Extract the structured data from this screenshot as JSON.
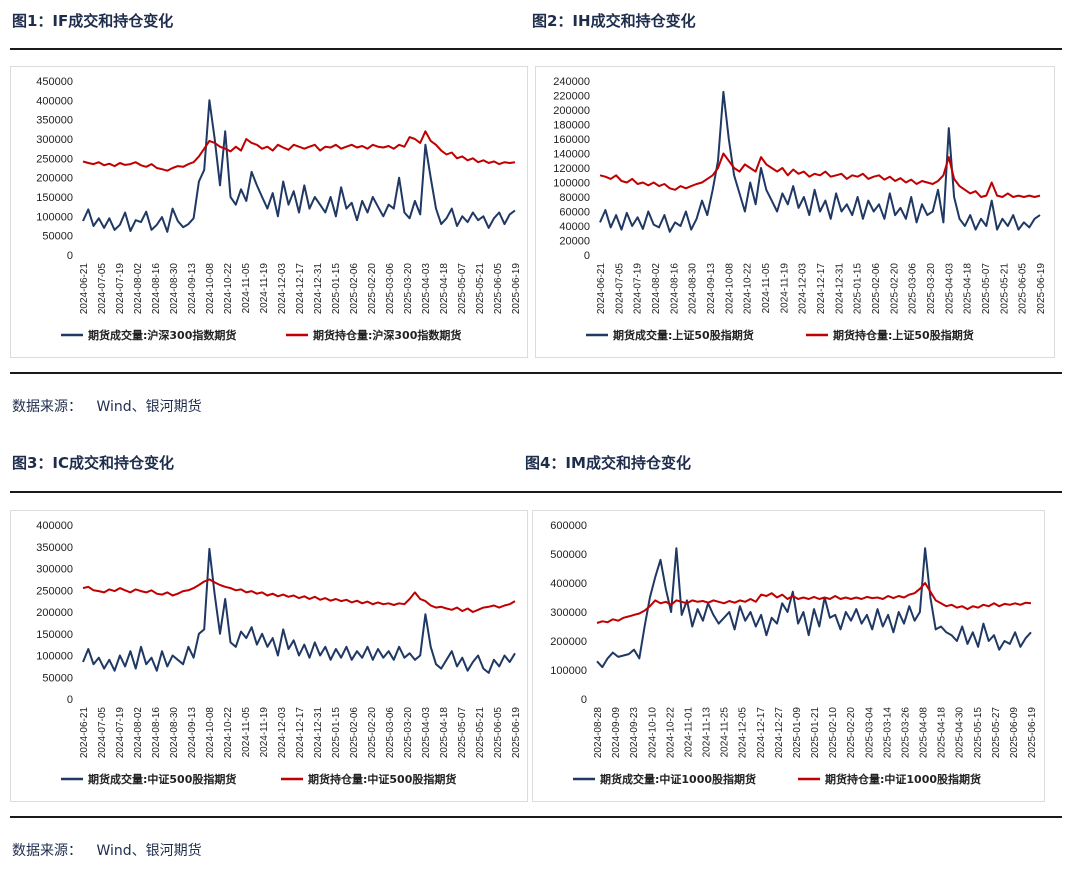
{
  "colors": {
    "volume": "#1f3864",
    "open_interest": "#c00000",
    "rule": "#1a1a1a"
  },
  "source_label": "数据来源：",
  "source_value": "Wind、银河期货",
  "chart_data": [
    {
      "type": "line",
      "title": "图1：IF成交和持仓变化",
      "yticks": [
        "450000",
        "400000",
        "350000",
        "300000",
        "250000",
        "200000",
        "150000",
        "100000",
        "50000",
        "0"
      ],
      "ylim": [
        0,
        450000
      ],
      "x_start": "2024-06-21",
      "x_end": "2025-06-19",
      "x_ticks": [
        "2024-06-21",
        "2024-07-05",
        "2024-07-19",
        "2024-08-02",
        "2024-08-16",
        "2024-08-30",
        "2024-09-13",
        "2024-10-08",
        "2024-10-22",
        "2024-11-05",
        "2024-11-19",
        "2024-12-03",
        "2024-12-17",
        "2024-12-31",
        "2025-01-15",
        "2025-02-06",
        "2025-02-20",
        "2025-03-06",
        "2025-03-20",
        "2025-04-03",
        "2025-04-18",
        "2025-05-07",
        "2025-05-21",
        "2025-06-05",
        "2025-06-19"
      ],
      "legend": [
        "期货成交量:沪深300指数期货",
        "期货持仓量:沪深300指数期货"
      ],
      "series": [
        {
          "name": "期货成交量:沪深300指数期货",
          "color": "#1f3864",
          "values": [
            88000,
            118000,
            75000,
            95000,
            70000,
            95000,
            65000,
            78000,
            110000,
            62000,
            90000,
            85000,
            112000,
            65000,
            78000,
            98000,
            60000,
            120000,
            88000,
            72000,
            80000,
            95000,
            190000,
            220000,
            400000,
            300000,
            180000,
            320000,
            150000,
            130000,
            170000,
            140000,
            215000,
            180000,
            150000,
            120000,
            160000,
            100000,
            190000,
            130000,
            165000,
            110000,
            180000,
            120000,
            150000,
            130000,
            110000,
            150000,
            100000,
            175000,
            120000,
            135000,
            90000,
            140000,
            110000,
            150000,
            125000,
            100000,
            130000,
            120000,
            200000,
            110000,
            95000,
            140000,
            105000,
            285000,
            200000,
            120000,
            80000,
            95000,
            120000,
            75000,
            100000,
            85000,
            110000,
            90000,
            100000,
            70000,
            95000,
            110000,
            80000,
            105000,
            115000
          ]
        },
        {
          "name": "期货持仓量:沪深300指数期货",
          "color": "#c00000",
          "values": [
            242000,
            238000,
            235000,
            240000,
            232000,
            236000,
            230000,
            238000,
            233000,
            235000,
            240000,
            232000,
            228000,
            235000,
            225000,
            222000,
            218000,
            225000,
            230000,
            228000,
            235000,
            240000,
            255000,
            275000,
            295000,
            290000,
            280000,
            275000,
            268000,
            280000,
            270000,
            300000,
            290000,
            285000,
            275000,
            280000,
            270000,
            285000,
            278000,
            272000,
            285000,
            280000,
            275000,
            280000,
            285000,
            270000,
            280000,
            278000,
            285000,
            275000,
            280000,
            285000,
            278000,
            282000,
            275000,
            285000,
            280000,
            278000,
            282000,
            275000,
            285000,
            280000,
            305000,
            300000,
            290000,
            320000,
            295000,
            285000,
            270000,
            260000,
            265000,
            250000,
            255000,
            245000,
            250000,
            240000,
            245000,
            238000,
            242000,
            235000,
            240000,
            238000,
            240000
          ]
        }
      ]
    },
    {
      "type": "line",
      "title": "图2：IH成交和持仓变化",
      "yticks": [
        "240000",
        "220000",
        "200000",
        "180000",
        "160000",
        "140000",
        "120000",
        "100000",
        "80000",
        "60000",
        "40000",
        "20000",
        "0"
      ],
      "ylim": [
        0,
        240000
      ],
      "x_start": "2024-06-21",
      "x_end": "2025-06-19",
      "x_ticks": [
        "2024-06-21",
        "2024-07-05",
        "2024-07-19",
        "2024-08-02",
        "2024-08-16",
        "2024-08-30",
        "2024-09-13",
        "2024-10-08",
        "2024-10-22",
        "2024-11-05",
        "2024-11-19",
        "2024-12-03",
        "2024-12-17",
        "2024-12-31",
        "2025-01-15",
        "2025-02-06",
        "2025-02-20",
        "2025-03-06",
        "2025-03-20",
        "2025-04-03",
        "2025-04-18",
        "2025-05-07",
        "2025-05-21",
        "2025-06-05",
        "2025-06-19"
      ],
      "legend": [
        "期货成交量:上证50股指期货",
        "期货持仓量:上证50股指期货"
      ],
      "series": [
        {
          "name": "期货成交量:上证50股指期货",
          "color": "#1f3864",
          "values": [
            45000,
            62000,
            38000,
            55000,
            35000,
            58000,
            40000,
            52000,
            36000,
            60000,
            42000,
            38000,
            55000,
            32000,
            45000,
            40000,
            60000,
            35000,
            50000,
            75000,
            55000,
            90000,
            130000,
            225000,
            160000,
            110000,
            85000,
            60000,
            100000,
            70000,
            120000,
            90000,
            75000,
            60000,
            85000,
            70000,
            95000,
            65000,
            80000,
            55000,
            90000,
            60000,
            75000,
            50000,
            85000,
            60000,
            70000,
            55000,
            80000,
            50000,
            75000,
            60000,
            70000,
            50000,
            85000,
            55000,
            65000,
            50000,
            80000,
            45000,
            70000,
            55000,
            60000,
            90000,
            45000,
            175000,
            80000,
            50000,
            40000,
            55000,
            35000,
            50000,
            40000,
            75000,
            35000,
            50000,
            40000,
            55000,
            35000,
            45000,
            38000,
            50000,
            55000
          ]
        },
        {
          "name": "期货持仓量:上证50股指期货",
          "color": "#c00000",
          "values": [
            110000,
            108000,
            105000,
            110000,
            102000,
            100000,
            105000,
            98000,
            100000,
            96000,
            100000,
            95000,
            98000,
            92000,
            90000,
            95000,
            92000,
            95000,
            98000,
            100000,
            105000,
            110000,
            120000,
            140000,
            130000,
            120000,
            115000,
            125000,
            120000,
            115000,
            135000,
            125000,
            120000,
            115000,
            120000,
            110000,
            118000,
            112000,
            115000,
            108000,
            112000,
            110000,
            115000,
            108000,
            110000,
            112000,
            105000,
            110000,
            108000,
            112000,
            105000,
            108000,
            110000,
            104000,
            108000,
            102000,
            106000,
            100000,
            104000,
            98000,
            102000,
            100000,
            98000,
            102000,
            110000,
            135000,
            105000,
            95000,
            90000,
            85000,
            88000,
            80000,
            82000,
            100000,
            82000,
            80000,
            85000,
            80000,
            82000,
            80000,
            82000,
            80000,
            82000
          ]
        }
      ]
    },
    {
      "type": "line",
      "title": "图3：IC成交和持仓变化",
      "yticks": [
        "400000",
        "350000",
        "300000",
        "250000",
        "200000",
        "150000",
        "100000",
        "50000",
        "0"
      ],
      "ylim": [
        0,
        400000
      ],
      "x_start": "2024-06-21",
      "x_end": "2025-06-19",
      "x_ticks": [
        "2024-06-21",
        "2024-07-05",
        "2024-07-19",
        "2024-08-02",
        "2024-08-16",
        "2024-08-30",
        "2024-09-13",
        "2024-10-08",
        "2024-10-22",
        "2024-11-05",
        "2024-11-19",
        "2024-12-03",
        "2024-12-17",
        "2024-12-31",
        "2025-01-15",
        "2025-02-06",
        "2025-02-20",
        "2025-03-06",
        "2025-03-20",
        "2025-04-03",
        "2025-04-18",
        "2025-05-07",
        "2025-05-21",
        "2025-06-05",
        "2025-06-19"
      ],
      "legend": [
        "期货成交量:中证500股指期货",
        "期货持仓量:中证500股指期货"
      ],
      "series": [
        {
          "name": "期货成交量:中证500股指期货",
          "color": "#1f3864",
          "values": [
            85000,
            115000,
            80000,
            95000,
            70000,
            90000,
            65000,
            100000,
            75000,
            110000,
            70000,
            120000,
            80000,
            95000,
            65000,
            110000,
            75000,
            100000,
            90000,
            80000,
            120000,
            95000,
            150000,
            160000,
            345000,
            240000,
            150000,
            230000,
            130000,
            120000,
            155000,
            140000,
            165000,
            125000,
            150000,
            120000,
            140000,
            100000,
            160000,
            115000,
            135000,
            100000,
            125000,
            95000,
            130000,
            100000,
            120000,
            90000,
            115000,
            95000,
            120000,
            90000,
            110000,
            95000,
            120000,
            90000,
            115000,
            95000,
            110000,
            90000,
            120000,
            95000,
            105000,
            90000,
            100000,
            195000,
            120000,
            80000,
            70000,
            90000,
            110000,
            75000,
            95000,
            65000,
            85000,
            100000,
            70000,
            60000,
            90000,
            75000,
            100000,
            85000,
            105000
          ]
        },
        {
          "name": "期货持仓量:中证500股指期货",
          "color": "#c00000",
          "values": [
            255000,
            258000,
            250000,
            248000,
            245000,
            252000,
            248000,
            255000,
            250000,
            245000,
            252000,
            248000,
            245000,
            250000,
            242000,
            240000,
            245000,
            238000,
            242000,
            248000,
            250000,
            255000,
            262000,
            270000,
            275000,
            268000,
            262000,
            258000,
            255000,
            250000,
            252000,
            245000,
            248000,
            242000,
            245000,
            238000,
            242000,
            236000,
            240000,
            235000,
            238000,
            232000,
            236000,
            230000,
            235000,
            228000,
            232000,
            226000,
            230000,
            225000,
            228000,
            222000,
            226000,
            220000,
            224000,
            218000,
            222000,
            218000,
            220000,
            216000,
            220000,
            218000,
            230000,
            245000,
            230000,
            225000,
            215000,
            210000,
            212000,
            208000,
            205000,
            210000,
            202000,
            208000,
            200000,
            205000,
            210000,
            212000,
            215000,
            210000,
            215000,
            218000,
            225000
          ]
        }
      ]
    },
    {
      "type": "line",
      "title": "图4：IM成交和持仓变化",
      "yticks": [
        "600000",
        "500000",
        "400000",
        "300000",
        "200000",
        "100000",
        "0"
      ],
      "ylim": [
        0,
        600000
      ],
      "x_start": "2024-06-28",
      "x_end": "2025-06-19",
      "x_ticks": [
        "2024-08-28",
        "2024-09-09",
        "2024-09-23",
        "2024-10-10",
        "2024-10-22",
        "2024-11-01",
        "2024-11-13",
        "2024-11-25",
        "2024-12-05",
        "2024-12-17",
        "2024-12-27",
        "2025-01-09",
        "2025-01-21",
        "2025-02-10",
        "2025-02-20",
        "2025-03-04",
        "2025-03-14",
        "2025-03-26",
        "2025-04-08",
        "2025-04-18",
        "2025-04-30",
        "2025-05-15",
        "2025-05-27",
        "2025-06-09",
        "2025-06-19"
      ],
      "legend": [
        "期货成交量:中证1000股指期货",
        "期货持仓量:中证1000股指期货"
      ],
      "series": [
        {
          "name": "期货成交量:中证1000股指期货",
          "color": "#1f3864",
          "values": [
            130000,
            110000,
            140000,
            160000,
            145000,
            150000,
            155000,
            170000,
            140000,
            250000,
            350000,
            420000,
            480000,
            380000,
            300000,
            520000,
            290000,
            340000,
            250000,
            310000,
            270000,
            330000,
            290000,
            260000,
            280000,
            300000,
            240000,
            320000,
            270000,
            300000,
            250000,
            290000,
            220000,
            280000,
            260000,
            330000,
            300000,
            370000,
            260000,
            300000,
            220000,
            310000,
            250000,
            350000,
            280000,
            290000,
            240000,
            300000,
            270000,
            310000,
            260000,
            290000,
            240000,
            310000,
            250000,
            290000,
            230000,
            300000,
            260000,
            320000,
            270000,
            300000,
            520000,
            350000,
            240000,
            250000,
            230000,
            220000,
            200000,
            250000,
            190000,
            230000,
            180000,
            260000,
            200000,
            220000,
            170000,
            200000,
            190000,
            230000,
            180000,
            210000,
            230000
          ]
        },
        {
          "name": "期货持仓量:中证1000股指期货",
          "color": "#c00000",
          "values": [
            262000,
            268000,
            265000,
            275000,
            270000,
            280000,
            285000,
            290000,
            295000,
            305000,
            320000,
            340000,
            330000,
            335000,
            325000,
            340000,
            335000,
            330000,
            340000,
            335000,
            338000,
            332000,
            340000,
            335000,
            330000,
            338000,
            332000,
            340000,
            335000,
            345000,
            335000,
            360000,
            355000,
            365000,
            350000,
            360000,
            345000,
            355000,
            345000,
            350000,
            345000,
            352000,
            345000,
            350000,
            345000,
            355000,
            345000,
            350000,
            345000,
            350000,
            345000,
            352000,
            348000,
            350000,
            345000,
            355000,
            348000,
            355000,
            350000,
            360000,
            365000,
            380000,
            400000,
            370000,
            340000,
            330000,
            320000,
            325000,
            315000,
            320000,
            310000,
            320000,
            315000,
            325000,
            320000,
            330000,
            320000,
            328000,
            325000,
            330000,
            325000,
            332000,
            330000
          ]
        }
      ]
    }
  ]
}
